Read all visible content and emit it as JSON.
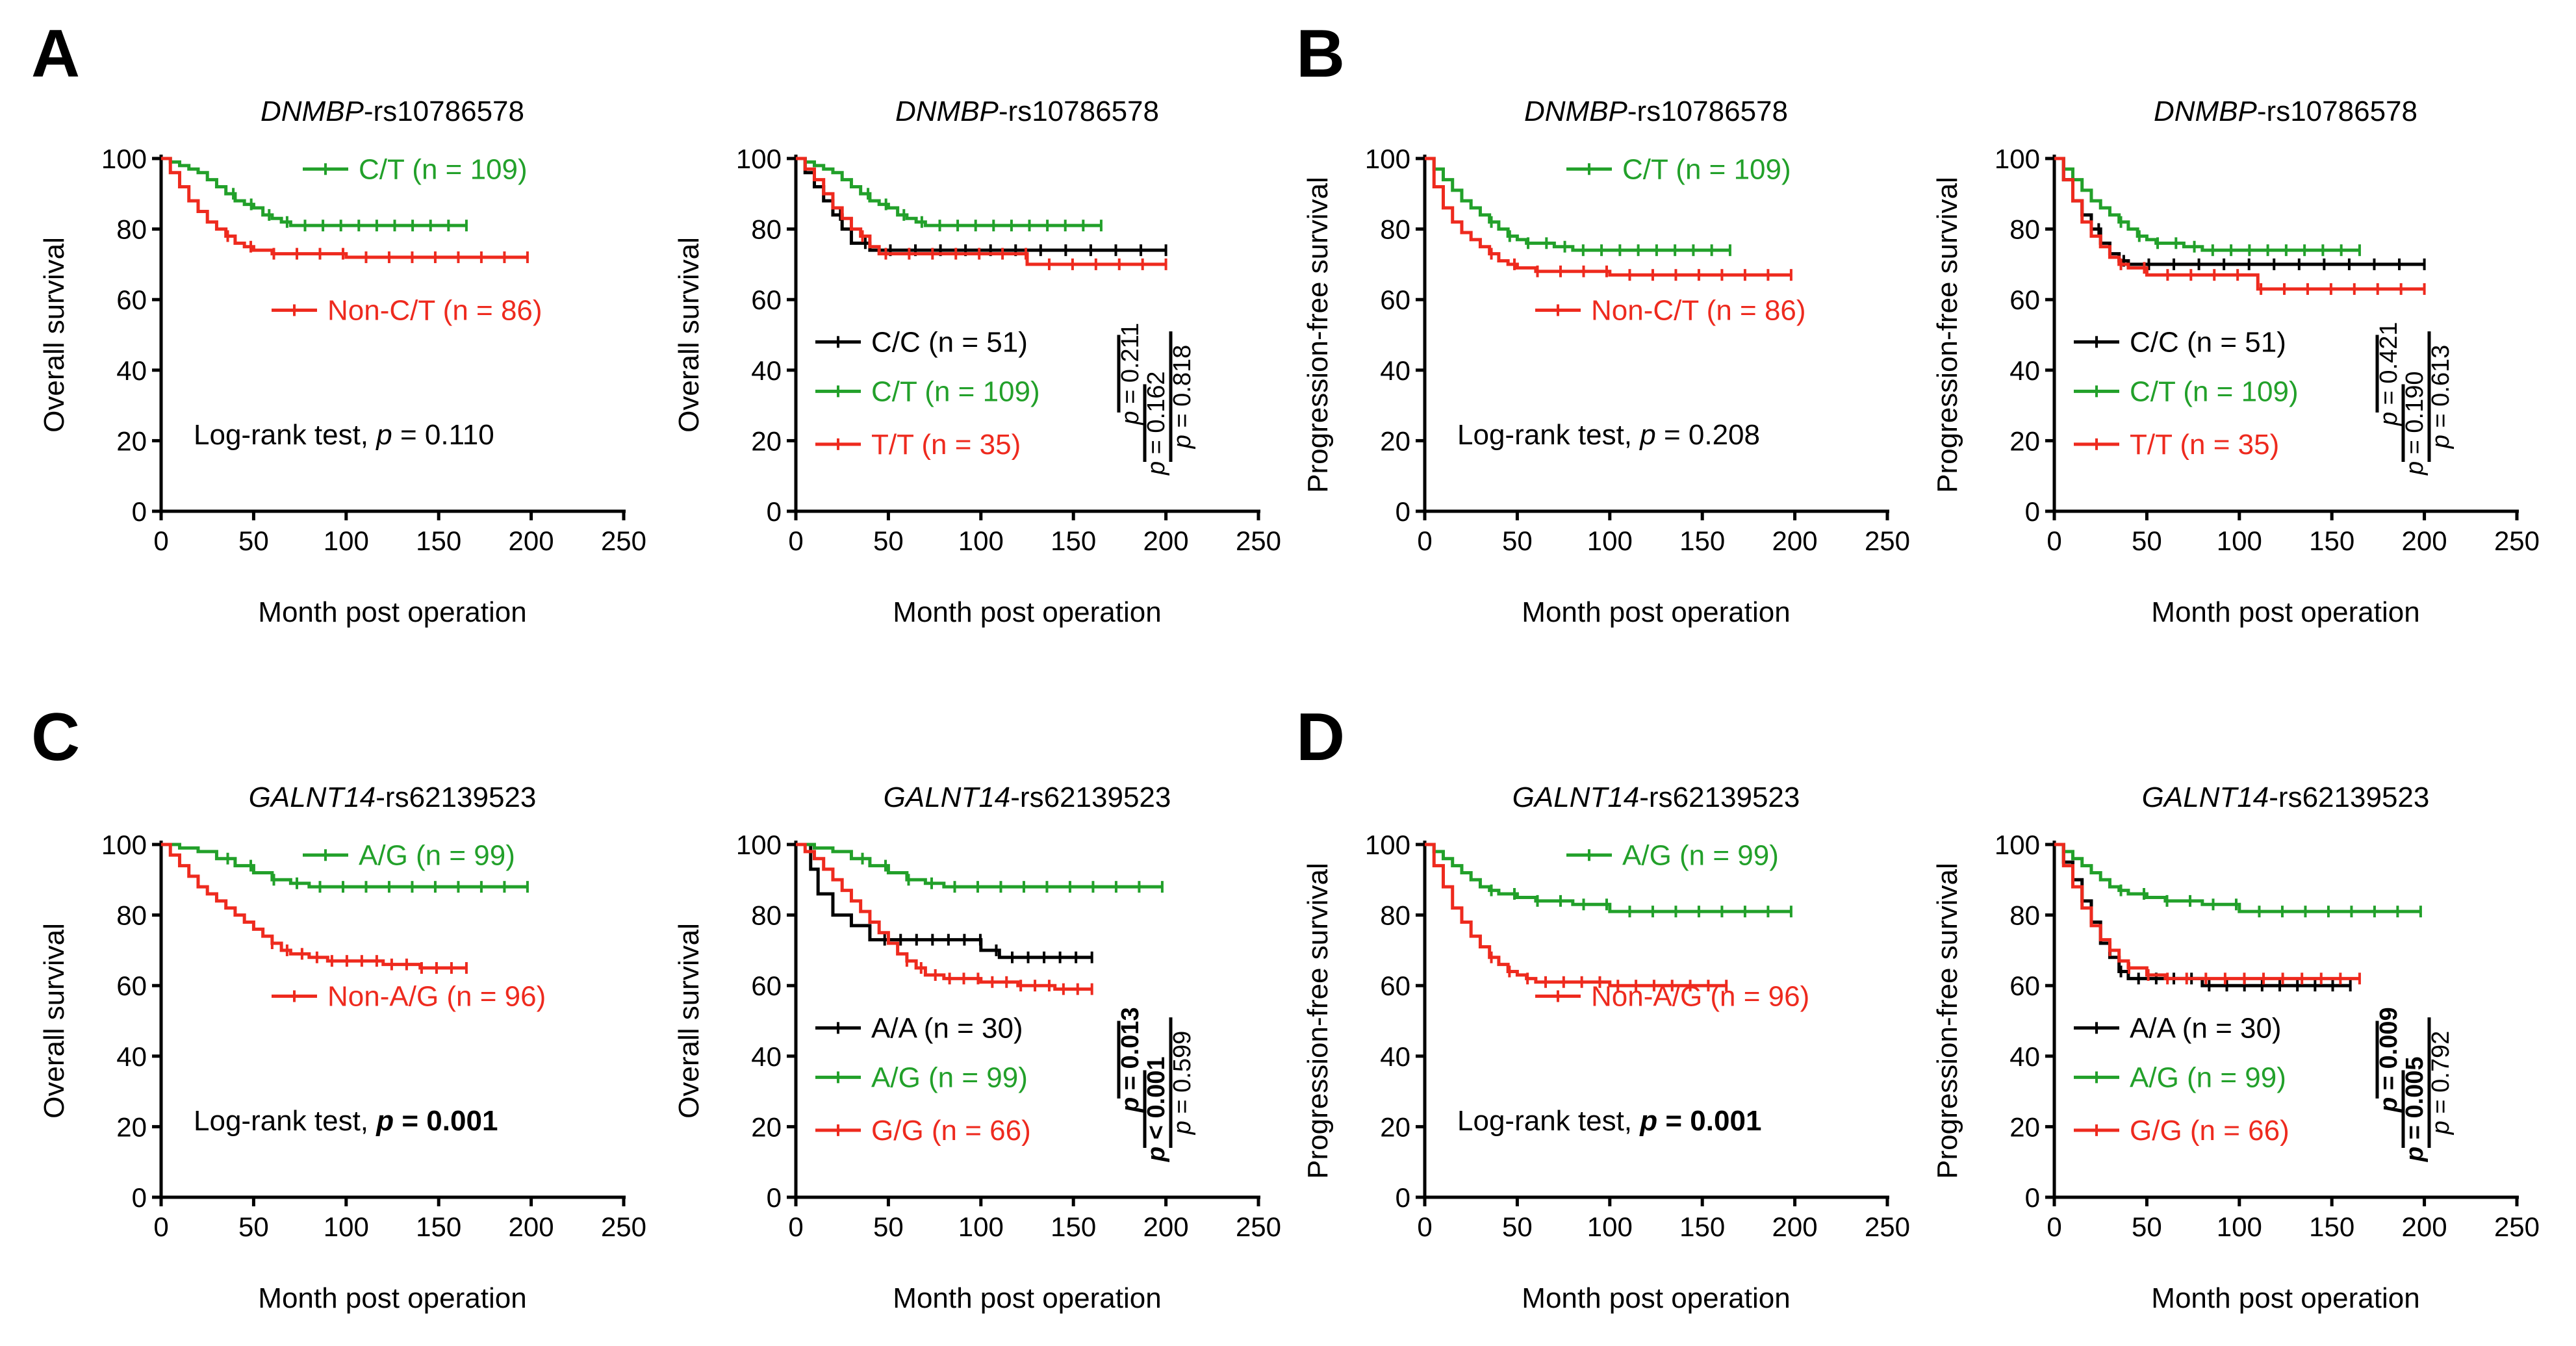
{
  "colors": {
    "black": "#000000",
    "green": "#22a02a",
    "red": "#ee2a1e"
  },
  "figure": {
    "panel_labels": [
      "A",
      "B",
      "C",
      "D"
    ],
    "gene_a": "DNMBP",
    "snp_a": "-rs10786578",
    "gene_b": "GALNT14",
    "snp_b": "-rs62139523",
    "x_label": "Month post operation",
    "y_label_os": "Overall survival",
    "y_label_pfs": "Progression-free survival",
    "logrank_label": "Log-rank test, ",
    "p_symbol": "p",
    "logrank_dnmbp_os": " = 0.110",
    "logrank_dnmbp_pfs": " = 0.208",
    "logrank_galnt_os": " = 0.001",
    "logrank_galnt_pfs": " = 0.001"
  },
  "chart_data": [
    {
      "id": "A1",
      "type": "line",
      "title": "DNMBP-rs10786578",
      "xlabel": "Month post operation",
      "ylabel": "Overall survival",
      "xlim": [
        0,
        250
      ],
      "ylim": [
        0,
        100
      ],
      "xticks": [
        0,
        50,
        100,
        150,
        200,
        250
      ],
      "yticks": [
        0,
        20,
        40,
        60,
        80,
        100
      ],
      "series": [
        {
          "name": "C/T (n = 109)",
          "color": "green",
          "x": [
            0,
            5,
            10,
            15,
            20,
            25,
            30,
            35,
            40,
            45,
            50,
            55,
            60,
            65,
            70,
            80,
            165
          ],
          "y": [
            100,
            99,
            98,
            97,
            96,
            94,
            92,
            90,
            88,
            87,
            86,
            84,
            83,
            82,
            81,
            81,
            81
          ]
        },
        {
          "name": "Non-C/T (n = 86)",
          "color": "red",
          "x": [
            0,
            5,
            10,
            15,
            20,
            25,
            30,
            35,
            40,
            45,
            50,
            60,
            80,
            100,
            198
          ],
          "y": [
            100,
            96,
            92,
            88,
            85,
            82,
            80,
            78,
            76,
            75,
            74,
            73,
            73,
            72,
            72
          ]
        }
      ],
      "annotation": {
        "text": "Log-rank test, p = 0.110"
      }
    },
    {
      "id": "A2",
      "type": "line",
      "title": "DNMBP-rs10786578",
      "xlabel": "Month post operation",
      "ylabel": "Overall survival",
      "xlim": [
        0,
        250
      ],
      "ylim": [
        0,
        100
      ],
      "xticks": [
        0,
        50,
        100,
        150,
        200,
        250
      ],
      "yticks": [
        0,
        20,
        40,
        60,
        80,
        100
      ],
      "series": [
        {
          "name": "C/C (n = 51)",
          "color": "black",
          "x": [
            0,
            5,
            10,
            15,
            20,
            25,
            30,
            40,
            50,
            60,
            200
          ],
          "y": [
            100,
            96,
            92,
            88,
            84,
            80,
            76,
            74,
            74,
            74,
            74
          ]
        },
        {
          "name": "C/T (n = 109)",
          "color": "green",
          "x": [
            0,
            5,
            10,
            15,
            20,
            25,
            30,
            35,
            40,
            45,
            50,
            55,
            60,
            65,
            70,
            80,
            165
          ],
          "y": [
            100,
            99,
            98,
            97,
            96,
            94,
            92,
            90,
            88,
            87,
            86,
            84,
            83,
            82,
            81,
            81,
            81
          ]
        },
        {
          "name": "T/T (n = 35)",
          "color": "red",
          "x": [
            0,
            5,
            10,
            15,
            20,
            25,
            30,
            35,
            40,
            45,
            50,
            60,
            100,
            125,
            200
          ],
          "y": [
            100,
            97,
            94,
            90,
            86,
            83,
            80,
            78,
            75,
            73,
            73,
            73,
            73,
            70,
            70
          ]
        }
      ],
      "pvalues": [
        {
          "text": "p = 0.211",
          "bold": false
        },
        {
          "text": "p = 0.162",
          "bold": false
        },
        {
          "text": "p = 0.818",
          "bold": false
        }
      ]
    },
    {
      "id": "B1",
      "type": "line",
      "title": "DNMBP-rs10786578",
      "xlabel": "Month post operation",
      "ylabel": "Progression-free survival",
      "xlim": [
        0,
        250
      ],
      "ylim": [
        0,
        100
      ],
      "xticks": [
        0,
        50,
        100,
        150,
        200,
        250
      ],
      "yticks": [
        0,
        20,
        40,
        60,
        80,
        100
      ],
      "series": [
        {
          "name": "C/T (n = 109)",
          "color": "green",
          "x": [
            0,
            5,
            10,
            15,
            20,
            25,
            30,
            35,
            40,
            45,
            50,
            55,
            60,
            70,
            80,
            165
          ],
          "y": [
            100,
            97,
            94,
            91,
            88,
            86,
            84,
            82,
            80,
            78,
            77,
            76,
            76,
            75,
            74,
            74
          ]
        },
        {
          "name": "Non-C/T (n = 86)",
          "color": "red",
          "x": [
            0,
            5,
            10,
            15,
            20,
            25,
            30,
            35,
            40,
            45,
            50,
            60,
            80,
            100,
            198
          ],
          "y": [
            100,
            92,
            86,
            82,
            79,
            77,
            75,
            73,
            71,
            70,
            69,
            68,
            68,
            67,
            67
          ]
        }
      ],
      "annotation": {
        "text": "Log-rank test, p = 0.208"
      }
    },
    {
      "id": "B2",
      "type": "line",
      "title": "DNMBP-rs10786578",
      "xlabel": "Month post operation",
      "ylabel": "Progression-free survival",
      "xlim": [
        0,
        250
      ],
      "ylim": [
        0,
        100
      ],
      "xticks": [
        0,
        50,
        100,
        150,
        200,
        250
      ],
      "yticks": [
        0,
        20,
        40,
        60,
        80,
        100
      ],
      "series": [
        {
          "name": "C/C (n = 51)",
          "color": "black",
          "x": [
            0,
            5,
            10,
            15,
            20,
            25,
            30,
            35,
            40,
            50,
            60,
            200
          ],
          "y": [
            100,
            94,
            88,
            84,
            80,
            76,
            73,
            71,
            70,
            70,
            70,
            70
          ]
        },
        {
          "name": "C/T (n = 109)",
          "color": "green",
          "x": [
            0,
            5,
            10,
            15,
            20,
            25,
            30,
            35,
            40,
            45,
            50,
            55,
            60,
            70,
            80,
            165
          ],
          "y": [
            100,
            97,
            94,
            91,
            88,
            86,
            84,
            82,
            80,
            78,
            77,
            76,
            76,
            75,
            74,
            74
          ]
        },
        {
          "name": "T/T (n = 35)",
          "color": "red",
          "x": [
            0,
            5,
            10,
            15,
            20,
            25,
            30,
            35,
            40,
            50,
            60,
            100,
            110,
            200
          ],
          "y": [
            100,
            94,
            88,
            82,
            78,
            75,
            72,
            70,
            69,
            67,
            67,
            67,
            63,
            63
          ]
        }
      ],
      "pvalues": [
        {
          "text": "p = 0.421",
          "bold": false
        },
        {
          "text": "p = 0.190",
          "bold": false
        },
        {
          "text": "p = 0.613",
          "bold": false
        }
      ]
    },
    {
      "id": "C1",
      "type": "line",
      "title": "GALNT14-rs62139523",
      "xlabel": "Month post operation",
      "ylabel": "Overall survival",
      "xlim": [
        0,
        250
      ],
      "ylim": [
        0,
        100
      ],
      "xticks": [
        0,
        50,
        100,
        150,
        200,
        250
      ],
      "yticks": [
        0,
        20,
        40,
        60,
        80,
        100
      ],
      "series": [
        {
          "name": "A/G (n = 99)",
          "color": "green",
          "x": [
            0,
            10,
            20,
            30,
            40,
            50,
            60,
            70,
            80,
            198
          ],
          "y": [
            100,
            99,
            98,
            96,
            94,
            92,
            90,
            89,
            88,
            88
          ]
        },
        {
          "name": "Non-A/G (n = 96)",
          "color": "red",
          "x": [
            0,
            5,
            10,
            15,
            20,
            25,
            30,
            35,
            40,
            45,
            50,
            55,
            60,
            65,
            70,
            80,
            90,
            100,
            120,
            140,
            165
          ],
          "y": [
            100,
            97,
            94,
            91,
            88,
            86,
            84,
            82,
            80,
            78,
            76,
            74,
            72,
            70,
            69,
            68,
            67,
            67,
            66,
            65,
            65
          ]
        }
      ],
      "annotation": {
        "text": "Log-rank test, p = 0.001"
      }
    },
    {
      "id": "C2",
      "type": "line",
      "title": "GALNT14-rs62139523",
      "xlabel": "Month post operation",
      "ylabel": "Overall survival",
      "xlim": [
        0,
        250
      ],
      "ylim": [
        0,
        100
      ],
      "xticks": [
        0,
        50,
        100,
        150,
        200,
        250
      ],
      "yticks": [
        0,
        20,
        40,
        60,
        80,
        100
      ],
      "series": [
        {
          "name": "A/A (n = 30)",
          "color": "black",
          "x": [
            0,
            8,
            12,
            20,
            30,
            40,
            50,
            60,
            80,
            100,
            110,
            160
          ],
          "y": [
            100,
            93,
            86,
            80,
            77,
            73,
            73,
            73,
            73,
            70,
            68,
            68
          ]
        },
        {
          "name": "A/G (n = 99)",
          "color": "green",
          "x": [
            0,
            10,
            20,
            30,
            40,
            50,
            60,
            70,
            80,
            198
          ],
          "y": [
            100,
            99,
            98,
            96,
            94,
            92,
            90,
            89,
            88,
            88
          ]
        },
        {
          "name": "G/G (n = 66)",
          "color": "red",
          "x": [
            0,
            5,
            10,
            15,
            20,
            25,
            30,
            35,
            40,
            45,
            50,
            55,
            60,
            65,
            70,
            80,
            100,
            120,
            140,
            160
          ],
          "y": [
            100,
            98,
            96,
            93,
            90,
            87,
            84,
            81,
            78,
            75,
            72,
            69,
            67,
            65,
            63,
            62,
            61,
            60,
            59,
            59
          ]
        }
      ],
      "pvalues": [
        {
          "text": "p = 0.013",
          "bold": true
        },
        {
          "text": "p < 0.001",
          "bold": true
        },
        {
          "text": "p = 0.599",
          "bold": false
        }
      ]
    },
    {
      "id": "D1",
      "type": "line",
      "title": "GALNT14-rs62139523",
      "xlabel": "Month post operation",
      "ylabel": "Progression-free survival",
      "xlim": [
        0,
        250
      ],
      "ylim": [
        0,
        100
      ],
      "xticks": [
        0,
        50,
        100,
        150,
        200,
        250
      ],
      "yticks": [
        0,
        20,
        40,
        60,
        80,
        100
      ],
      "series": [
        {
          "name": "A/G (n = 99)",
          "color": "green",
          "x": [
            0,
            5,
            10,
            15,
            20,
            25,
            30,
            35,
            40,
            50,
            60,
            80,
            100,
            198
          ],
          "y": [
            100,
            98,
            96,
            94,
            92,
            90,
            88,
            87,
            86,
            85,
            84,
            83,
            81,
            81
          ]
        },
        {
          "name": "Non-A/G (n = 96)",
          "color": "red",
          "x": [
            0,
            5,
            10,
            15,
            20,
            25,
            30,
            35,
            40,
            45,
            50,
            55,
            60,
            80,
            100,
            163
          ],
          "y": [
            100,
            94,
            88,
            82,
            78,
            74,
            71,
            68,
            66,
            64,
            63,
            62,
            61,
            61,
            60,
            60
          ]
        }
      ],
      "annotation": {
        "text": "Log-rank test, p = 0.001"
      }
    },
    {
      "id": "D2",
      "type": "line",
      "title": "GALNT14-rs62139523",
      "xlabel": "Month post operation",
      "ylabel": "Progression-free survival",
      "xlim": [
        0,
        250
      ],
      "ylim": [
        0,
        100
      ],
      "xticks": [
        0,
        50,
        100,
        150,
        200,
        250
      ],
      "yticks": [
        0,
        20,
        40,
        60,
        80,
        100
      ],
      "series": [
        {
          "name": "A/A (n = 30)",
          "color": "black",
          "x": [
            0,
            5,
            10,
            15,
            20,
            25,
            30,
            35,
            40,
            50,
            60,
            80,
            100,
            160
          ],
          "y": [
            100,
            95,
            90,
            84,
            78,
            72,
            68,
            64,
            62,
            62,
            62,
            60,
            60,
            60
          ]
        },
        {
          "name": "A/G (n = 99)",
          "color": "green",
          "x": [
            0,
            5,
            10,
            15,
            20,
            25,
            30,
            35,
            40,
            50,
            60,
            80,
            100,
            198
          ],
          "y": [
            100,
            98,
            96,
            94,
            92,
            90,
            88,
            87,
            86,
            85,
            84,
            83,
            81,
            81
          ]
        },
        {
          "name": "G/G (n = 66)",
          "color": "red",
          "x": [
            0,
            5,
            10,
            15,
            20,
            25,
            30,
            35,
            40,
            50,
            60,
            100,
            165
          ],
          "y": [
            100,
            94,
            88,
            82,
            77,
            73,
            70,
            67,
            65,
            63,
            62,
            62,
            62
          ]
        }
      ],
      "pvalues": [
        {
          "text": "p = 0.009",
          "bold": true
        },
        {
          "text": "p = 0.005",
          "bold": true
        },
        {
          "text": "p = 0.792",
          "bold": false
        }
      ]
    }
  ]
}
